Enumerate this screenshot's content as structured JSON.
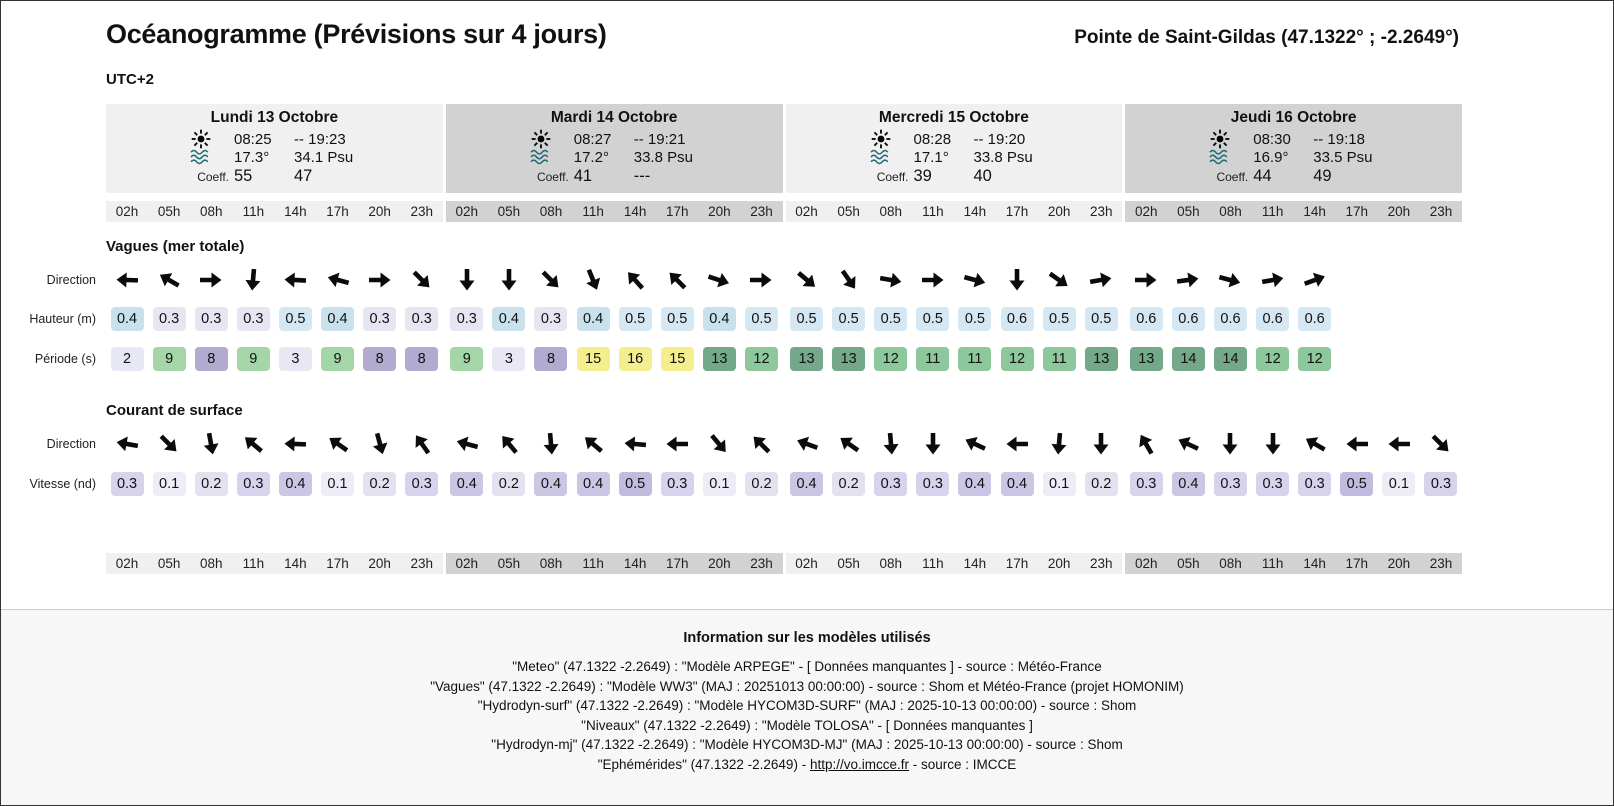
{
  "header": {
    "title": "Océanogramme (Prévisions sur 4 jours)",
    "location": "Pointe de Saint-Gildas (47.1322° ; -2.2649°)",
    "timezone": "UTC+2"
  },
  "hours": [
    "02h",
    "05h",
    "08h",
    "11h",
    "14h",
    "17h",
    "20h",
    "23h"
  ],
  "section_titles": {
    "waves": "Vagues (mer totale)",
    "current": "Courant de surface"
  },
  "row_labels": {
    "direction": "Direction",
    "height": "Hauteur (m)",
    "period": "Période (s)",
    "speed": "Vitesse (nd)"
  },
  "labels": {
    "coeff": "Coeff.",
    "sun_separator": "--"
  },
  "chart_data": {
    "type": "table",
    "title": "Océanogramme (Prévisions sur 4 jours)",
    "location": "Pointe de Saint-Gildas (47.1322° ; -2.2649°)",
    "timezone": "UTC+2",
    "hours": [
      "02h",
      "05h",
      "08h",
      "11h",
      "14h",
      "17h",
      "20h",
      "23h"
    ],
    "direction_convention": "degrees, 0 = arrow pointing right/east, clockwise",
    "days": [
      {
        "name": "Lundi 13 Octobre",
        "sunrise": "08:25",
        "sunset": "19:23",
        "water_temp": "17.3°",
        "salinity": "34.1 Psu",
        "coeff": [
          "55",
          "47"
        ],
        "wave_direction_deg": [
          182,
          210,
          0,
          95,
          183,
          195,
          0,
          45
        ],
        "wave_height_m": [
          0.4,
          0.3,
          0.3,
          0.3,
          0.5,
          0.4,
          0.3,
          0.3
        ],
        "wave_period_s": [
          2,
          9,
          8,
          9,
          3,
          9,
          8,
          8
        ],
        "current_direction_deg": [
          190,
          45,
          80,
          220,
          182,
          215,
          75,
          235
        ],
        "current_speed_kn": [
          0.3,
          0.1,
          0.2,
          0.3,
          0.4,
          0.1,
          0.2,
          0.3
        ]
      },
      {
        "name": "Mardi 14 Octobre",
        "sunrise": "08:27",
        "sunset": "19:21",
        "water_temp": "17.2°",
        "salinity": "33.8 Psu",
        "coeff": [
          "41",
          "---"
        ],
        "wave_direction_deg": [
          90,
          90,
          45,
          68,
          228,
          225,
          18,
          0
        ],
        "wave_height_m": [
          0.3,
          0.4,
          0.3,
          0.4,
          0.5,
          0.5,
          0.4,
          0.5
        ],
        "wave_period_s": [
          9,
          3,
          8,
          15,
          16,
          15,
          13,
          12
        ],
        "current_direction_deg": [
          195,
          230,
          85,
          220,
          185,
          180,
          50,
          225
        ],
        "current_speed_kn": [
          0.4,
          0.2,
          0.4,
          0.4,
          0.5,
          0.3,
          0.1,
          0.2
        ]
      },
      {
        "name": "Mercredi 15 Octobre",
        "sunrise": "08:28",
        "sunset": "19:20",
        "water_temp": "17.1°",
        "salinity": "33.8 Psu",
        "coeff": [
          "39",
          "40"
        ],
        "wave_direction_deg": [
          40,
          55,
          10,
          0,
          15,
          90,
          35,
          -10
        ],
        "wave_height_m": [
          0.5,
          0.5,
          0.5,
          0.5,
          0.5,
          0.6,
          0.5,
          0.5
        ],
        "wave_period_s": [
          13,
          13,
          12,
          11,
          11,
          12,
          11,
          13
        ],
        "current_direction_deg": [
          200,
          215,
          85,
          90,
          205,
          180,
          95,
          90
        ],
        "current_speed_kn": [
          0.4,
          0.2,
          0.3,
          0.3,
          0.4,
          0.4,
          0.1,
          0.2
        ]
      },
      {
        "name": "Jeudi 16 Octobre",
        "sunrise": "08:30",
        "sunset": "19:18",
        "water_temp": "16.9°",
        "salinity": "33.5 Psu",
        "coeff": [
          "44",
          "49"
        ],
        "wave_direction_deg": [
          0,
          -8,
          15,
          -10,
          -20
        ],
        "wave_height_m": [
          0.6,
          0.6,
          0.6,
          0.6,
          0.6
        ],
        "wave_period_s": [
          13,
          14,
          14,
          12,
          12
        ],
        "current_direction_deg": [
          240,
          205,
          90,
          90,
          210,
          180,
          180,
          45
        ],
        "current_speed_kn": [
          0.3,
          0.4,
          0.3,
          0.3,
          0.3,
          0.5,
          0.1,
          0.3
        ]
      }
    ]
  },
  "footer": {
    "title": "Information sur les modèles utilisés",
    "lines": [
      "\"Meteo\" (47.1322 -2.2649) : \"Modèle ARPEGE\" - [ Données manquantes ] - source : Météo-France",
      "\"Vagues\" (47.1322 -2.2649) : \"Modèle WW3\" (MAJ : 20251013 00:00:00) - source : Shom et Météo-France (projet HOMONIM)",
      "\"Hydrodyn-surf\" (47.1322 -2.2649) : \"Modèle HYCOM3D-SURF\" (MAJ : 2025-10-13 00:00:00) - source : Shom",
      "\"Niveaux\" (47.1322 -2.2649) : \"Modèle TOLOSA\" - [ Données manquantes ]",
      "\"Hydrodyn-mj\" (47.1322 -2.2649) : \"Modèle HYCOM3D-MJ\" (MAJ : 2025-10-13 00:00:00) - source : Shom"
    ],
    "last_line": {
      "pre": "\"Ephémérides\" (47.1322 -2.2649) - ",
      "link": "http://vo.imcce.fr",
      "post": " - source : IMCCE"
    }
  },
  "colors": {
    "day_bg_light": "#f0f0f0",
    "day_bg_dark": "#d2d2d2",
    "wave_icon": "#1d6b74",
    "arrow": "#0b0b0b",
    "height_low": "#e6e6f3",
    "height_mid": "#c9e1ec",
    "height_high": "#d4e7f3",
    "period_calm": "#e8e8f4",
    "period_8": "#b2aacf",
    "period_9": "#a4d6a7",
    "period_mid": "#8dc79c",
    "period_high": "#74a88b",
    "period_swell": "#f5ee8e",
    "speed": {
      "1": "#edecf7",
      "2": "#e3e0f0",
      "3": "#d8d3ec",
      "4": "#ccc6e5",
      "5": "#c2bbdf"
    }
  }
}
